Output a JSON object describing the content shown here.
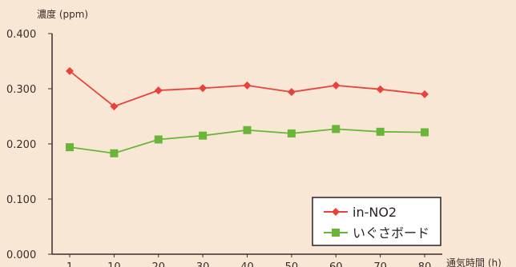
{
  "chart_data": {
    "type": "line",
    "ylabel": "濃度 (ppm)",
    "xlabel": "通気時間 (h)",
    "categories": [
      "1",
      "10",
      "20",
      "30",
      "40",
      "50",
      "60",
      "70",
      "80"
    ],
    "y_ticks": [
      "0.000",
      "0.100",
      "0.200",
      "0.300",
      "0.400"
    ],
    "ylim": [
      0,
      0.4
    ],
    "grid": false,
    "legend_position": "bottom-right",
    "series": [
      {
        "name": "in-NO2",
        "values": [
          0.332,
          0.268,
          0.297,
          0.301,
          0.306,
          0.294,
          0.306,
          0.299,
          0.29
        ],
        "color": "#e8433a",
        "marker": "diamond"
      },
      {
        "name": "いぐさボード",
        "values": [
          0.194,
          0.183,
          0.208,
          0.215,
          0.225,
          0.219,
          0.227,
          0.222,
          0.221
        ],
        "color": "#69b53a",
        "marker": "square"
      }
    ]
  }
}
